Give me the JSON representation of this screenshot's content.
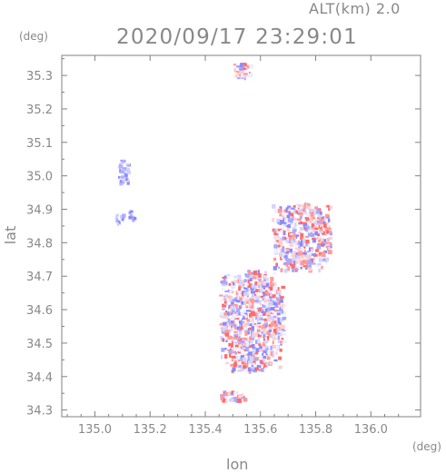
{
  "header": {
    "altitude_label": "ALT(km) 2.0",
    "timestamp": "2020/09/17 23:29:01"
  },
  "axes": {
    "x_unit": "(deg)",
    "y_unit": "(deg)",
    "x_label": "lon",
    "y_label": "lat",
    "x_ticks": [
      "135.0",
      "135.2",
      "135.4",
      "135.6",
      "135.8",
      "136.0"
    ],
    "y_ticks": [
      "35.3",
      "35.2",
      "35.1",
      "35.0",
      "34.9",
      "34.8",
      "34.7",
      "34.6",
      "34.5",
      "34.4",
      "34.3"
    ],
    "x_range": [
      134.88,
      136.18
    ],
    "y_range": [
      34.28,
      35.36
    ]
  },
  "colors": {
    "frame": "#808080",
    "positive": "#ff6b6b",
    "negative": "#8a8aff",
    "text": "#888888"
  },
  "chart_data": {
    "type": "heatmap",
    "title": "2020/09/17 23:29:01",
    "xlabel": "lon",
    "ylabel": "lat",
    "xlim": [
      134.88,
      136.18
    ],
    "ylim": [
      34.28,
      35.36
    ],
    "x_ticks": [
      135.0,
      135.2,
      135.4,
      135.6,
      135.8,
      136.0
    ],
    "y_ticks": [
      34.3,
      34.4,
      34.5,
      34.6,
      34.7,
      34.8,
      34.9,
      35.0,
      35.1,
      35.2,
      35.3
    ],
    "grid": false,
    "regions": [
      {
        "lon": [
          135.08,
          135.12
        ],
        "lat": [
          34.98,
          35.05
        ],
        "value": "negative"
      },
      {
        "lon": [
          135.07,
          135.1
        ],
        "lat": [
          34.86,
          34.9
        ],
        "value": "negative"
      },
      {
        "lon": [
          135.12,
          135.14
        ],
        "lat": [
          34.87,
          34.9
        ],
        "value": "negative"
      },
      {
        "lon": [
          135.5,
          135.56
        ],
        "lat": [
          35.29,
          35.34
        ],
        "value": "mixed"
      },
      {
        "lon": [
          135.45,
          135.68
        ],
        "lat": [
          34.42,
          34.72
        ],
        "value": "mixed"
      },
      {
        "lon": [
          135.64,
          135.85
        ],
        "lat": [
          34.72,
          34.92
        ],
        "value": "mixed"
      },
      {
        "lon": [
          135.44,
          135.54
        ],
        "lat": [
          34.33,
          34.36
        ],
        "value": "mixed"
      }
    ]
  }
}
